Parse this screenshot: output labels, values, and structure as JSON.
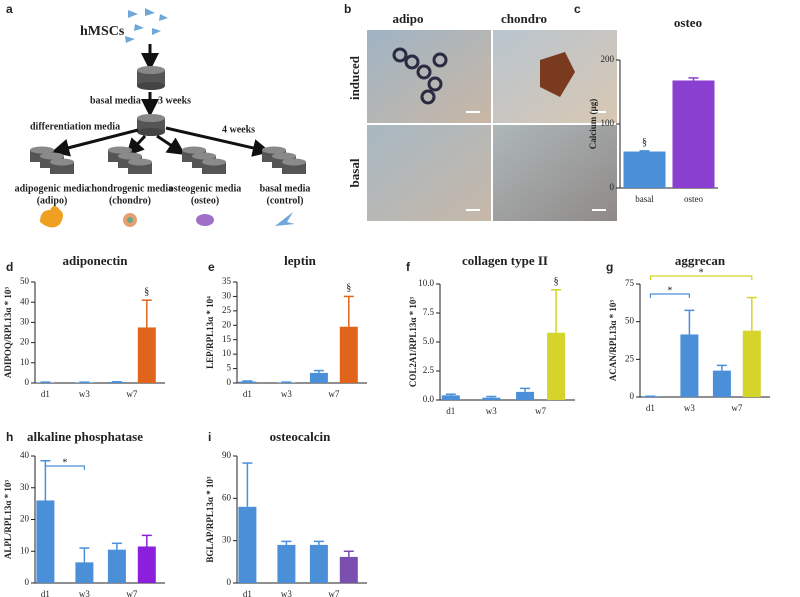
{
  "figure": {
    "panel_a": {
      "letter": "a",
      "cells": "hMSCs",
      "basal_media": "basal media",
      "weeks_3": "3 weeks",
      "differentiation_media": "differentiation media",
      "weeks_4": "4 weeks",
      "groups": [
        {
          "name": "adipogenic media",
          "short": "(adipo)"
        },
        {
          "name": "chondrogenic media",
          "short": "(chondro)"
        },
        {
          "name": "osteogenic media",
          "short": "(osteo)"
        },
        {
          "name": "basal media",
          "short": "(control)"
        }
      ]
    },
    "panel_b": {
      "letter": "b",
      "columns": [
        "adipo",
        "chondro"
      ],
      "rows": [
        "induced",
        "basal"
      ]
    }
  },
  "chart_data": [
    {
      "type": "bar",
      "panel": "c",
      "title": "osteo",
      "ylabel": "Calcium (µg)",
      "categories": [
        "basal",
        "osteo"
      ],
      "values": [
        57,
        168
      ],
      "errors": [
        1,
        4
      ],
      "colors": [
        "#4a8fd8",
        "#8a3fd0"
      ],
      "bar_symbols": [
        "§",
        null
      ],
      "ylim": [
        0,
        200
      ],
      "yticks": [
        0,
        100,
        200
      ]
    },
    {
      "type": "bar",
      "panel": "d",
      "title": "adiponectin",
      "ylabel": "ADIPOQ/RPL13α * 10³",
      "categories": [
        "d1",
        "w3",
        null,
        null
      ],
      "x_group_label": "w7",
      "values": [
        0.3,
        0.3,
        0.5,
        27.5
      ],
      "errors": [
        0.1,
        0.1,
        0.1,
        13.5
      ],
      "colors": [
        "#4a8fd8",
        "#4a8fd8",
        "#4a8fd8",
        "#e0641a"
      ],
      "bar_symbols": [
        null,
        null,
        null,
        "§"
      ],
      "ylim": [
        0,
        50
      ],
      "yticks": [
        0,
        10,
        20,
        30,
        40,
        50
      ]
    },
    {
      "type": "bar",
      "panel": "e",
      "title": "leptin",
      "ylabel": "LEP/RPL13α * 10⁴",
      "categories": [
        "d1",
        "w3",
        null,
        null
      ],
      "x_group_label": "w7",
      "values": [
        0.5,
        0.2,
        3.5,
        19.5
      ],
      "errors": [
        0.2,
        0.1,
        0.8,
        10.5
      ],
      "colors": [
        "#4a8fd8",
        "#4a8fd8",
        "#4a8fd8",
        "#e0641a"
      ],
      "bar_symbols": [
        null,
        null,
        null,
        "§"
      ],
      "ylim": [
        0,
        35
      ],
      "yticks": [
        0,
        5,
        10,
        15,
        20,
        25,
        30,
        35
      ]
    },
    {
      "type": "bar",
      "panel": "f",
      "title": "collagen type II",
      "ylabel": "COL2A1/RPL13α * 10³",
      "categories": [
        "d1",
        "w3",
        null,
        null
      ],
      "x_group_label": "w7",
      "values": [
        0.4,
        0.2,
        0.7,
        5.8
      ],
      "errors": [
        0.1,
        0.1,
        0.3,
        3.7
      ],
      "colors": [
        "#4a8fd8",
        "#4a8fd8",
        "#4a8fd8",
        "#d4d42a"
      ],
      "bar_symbols": [
        null,
        null,
        null,
        "§"
      ],
      "ylim": [
        0,
        10
      ],
      "yticks": [
        {
          "value": 0,
          "label": "0.0"
        },
        {
          "value": 2.5,
          "label": "2.5"
        },
        {
          "value": 5,
          "label": "5.0"
        },
        {
          "value": 7.5,
          "label": "7.5"
        },
        {
          "value": 10,
          "label": "10.0"
        }
      ]
    },
    {
      "type": "bar",
      "panel": "g",
      "title": "aggrecan",
      "ylabel": "ACAN/RPL13α * 10³",
      "categories": [
        "d1",
        "w3",
        null,
        null
      ],
      "x_group_label": "w7",
      "values": [
        0.5,
        41.5,
        17.5,
        44
      ],
      "errors": [
        0,
        16,
        3.5,
        22
      ],
      "colors": [
        "#4a8fd8",
        "#4a8fd8",
        "#4a8fd8",
        "#d4d42a"
      ],
      "brackets": [
        {
          "bars": [
            0,
            1
          ],
          "label": "*",
          "color": "#4a8fd8"
        },
        {
          "bars": [
            0,
            3
          ],
          "label": "*",
          "color": "#d4d42a"
        }
      ],
      "ylim": [
        0,
        75
      ],
      "yticks": [
        0,
        25,
        50,
        75
      ]
    },
    {
      "type": "bar",
      "panel": "h",
      "title": "alkaline phosphatase",
      "ylabel": "ALPL/RPL13α * 10³",
      "categories": [
        "d1",
        "w3",
        null,
        null
      ],
      "x_group_label": "w7",
      "values": [
        26,
        6.5,
        10.5,
        11.5
      ],
      "errors": [
        12.5,
        4.5,
        2,
        3.5
      ],
      "colors": [
        "#4a8fd8",
        "#4a8fd8",
        "#4a8fd8",
        "#8b1fdc"
      ],
      "brackets": [
        {
          "bars": [
            0,
            1
          ],
          "label": "*",
          "color": "#4a8fd8"
        }
      ],
      "ylim": [
        0,
        40
      ],
      "yticks": [
        0,
        10,
        20,
        30,
        40
      ]
    },
    {
      "type": "bar",
      "panel": "i",
      "title": "osteocalcin",
      "ylabel": "BGLAP/RPL13α * 10³",
      "categories": [
        "d1",
        "w3",
        null,
        null
      ],
      "x_group_label": "w7",
      "values": [
        54,
        27,
        27,
        18.5
      ],
      "errors": [
        31,
        2.5,
        2.5,
        4
      ],
      "colors": [
        "#4a8fd8",
        "#4a8fd8",
        "#4a8fd8",
        "#7b4fb0"
      ],
      "ylim": [
        0,
        90
      ],
      "yticks": [
        0,
        30,
        60,
        90
      ]
    }
  ]
}
